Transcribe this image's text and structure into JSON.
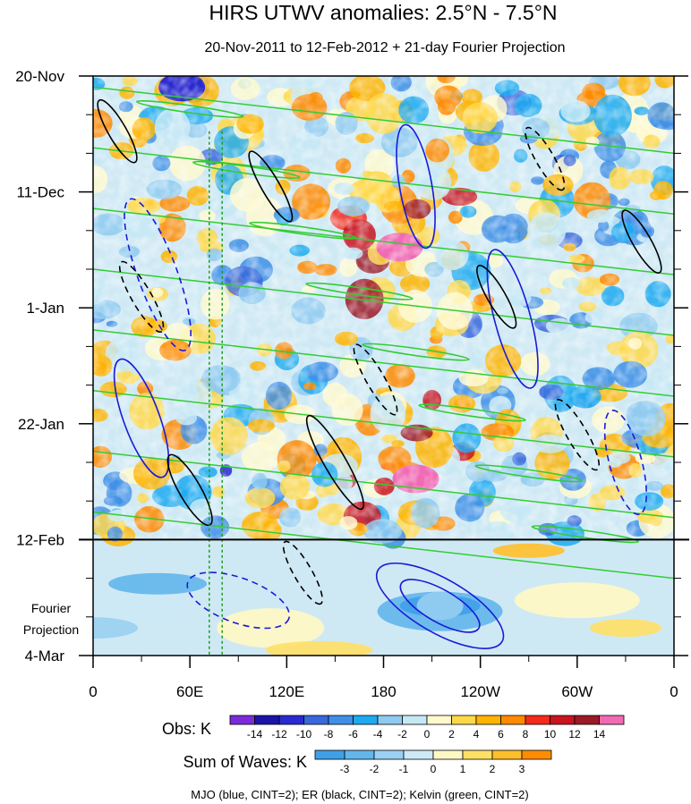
{
  "chart_data": {
    "type": "heatmap",
    "title": "HIRS UTWV anomalies: 2.5°N - 7.5°N",
    "subtitle": "20-Nov-2011 to 12-Feb-2012 + 21-day Fourier Projection",
    "y_axis": {
      "ticks": [
        "20-Nov",
        "11-Dec",
        "1-Jan",
        "22-Jan",
        "12-Feb",
        "4-Mar"
      ],
      "tick_days": [
        0,
        21,
        42,
        63,
        84,
        105
      ],
      "range_days": [
        0,
        105
      ],
      "projection_label_line1": "Fourier",
      "projection_label_line2": "Projection",
      "projection_start_day": 84
    },
    "x_axis": {
      "ticks": [
        "0",
        "60E",
        "120E",
        "180",
        "120W",
        "60W",
        "0"
      ],
      "tick_lons": [
        0,
        60,
        120,
        180,
        240,
        300,
        360
      ],
      "range_lon": [
        0,
        360
      ]
    },
    "obs_colorbar": {
      "label": "Obs: K",
      "levels": [
        "-14",
        "-12",
        "-10",
        "-8",
        "-6",
        "-4",
        "-2",
        "0",
        "2",
        "4",
        "6",
        "8",
        "10",
        "12",
        "14"
      ],
      "level_values": [
        -14,
        -12,
        -10,
        -8,
        -6,
        -4,
        -2,
        0,
        2,
        4,
        6,
        8,
        10,
        12,
        14
      ],
      "colors": [
        "#7b2cd9",
        "#1a14a8",
        "#2a2ad0",
        "#3a68dc",
        "#3f8fe6",
        "#1eaaf0",
        "#8fcaf0",
        "#c5e8f4",
        "#fff9cc",
        "#ffd84a",
        "#ffb400",
        "#ff8a00",
        "#f52a1a",
        "#c8141e",
        "#9c1a28",
        "#f06ab4"
      ]
    },
    "waves_colorbar": {
      "label": "Sum of Waves: K",
      "levels": [
        "-3",
        "-2",
        "-1",
        "0",
        "1",
        "2",
        "3"
      ],
      "level_values": [
        -3,
        -2,
        -1,
        0,
        1,
        2,
        3
      ],
      "colors": [
        "#3fa0e8",
        "#62b6ec",
        "#9ad0f2",
        "#cde9f6",
        "#fff8c4",
        "#ffe066",
        "#ffbf2a",
        "#ff8c00"
      ]
    },
    "series": [
      {
        "name": "MJO",
        "contour_color": "blue",
        "cint": 2
      },
      {
        "name": "ER",
        "contour_color": "black",
        "cint": 2
      },
      {
        "name": "Kelvin",
        "contour_color": "green",
        "cint": 2
      }
    ],
    "features": [
      {
        "name": "warm-anomaly-date-line-dec",
        "lon": 190,
        "day": 31,
        "value": 14
      },
      {
        "name": "warm-anomaly-date-line-feb",
        "lon": 200,
        "day": 73,
        "value": 14
      },
      {
        "name": "cold-anomaly-nw",
        "lon": 55,
        "day": 2,
        "value": -12
      },
      {
        "name": "projection-mjo-negative",
        "lon": 215,
        "day": 96,
        "value": -4
      }
    ],
    "footer": "MJO (blue, CINT=2); ER (black, CINT=2); Kelvin (green, CINT=2)"
  },
  "colors": {
    "mjo": "#1a1ad8",
    "er": "#000000",
    "kelvin": "#33cc33",
    "divider": "#000000"
  }
}
